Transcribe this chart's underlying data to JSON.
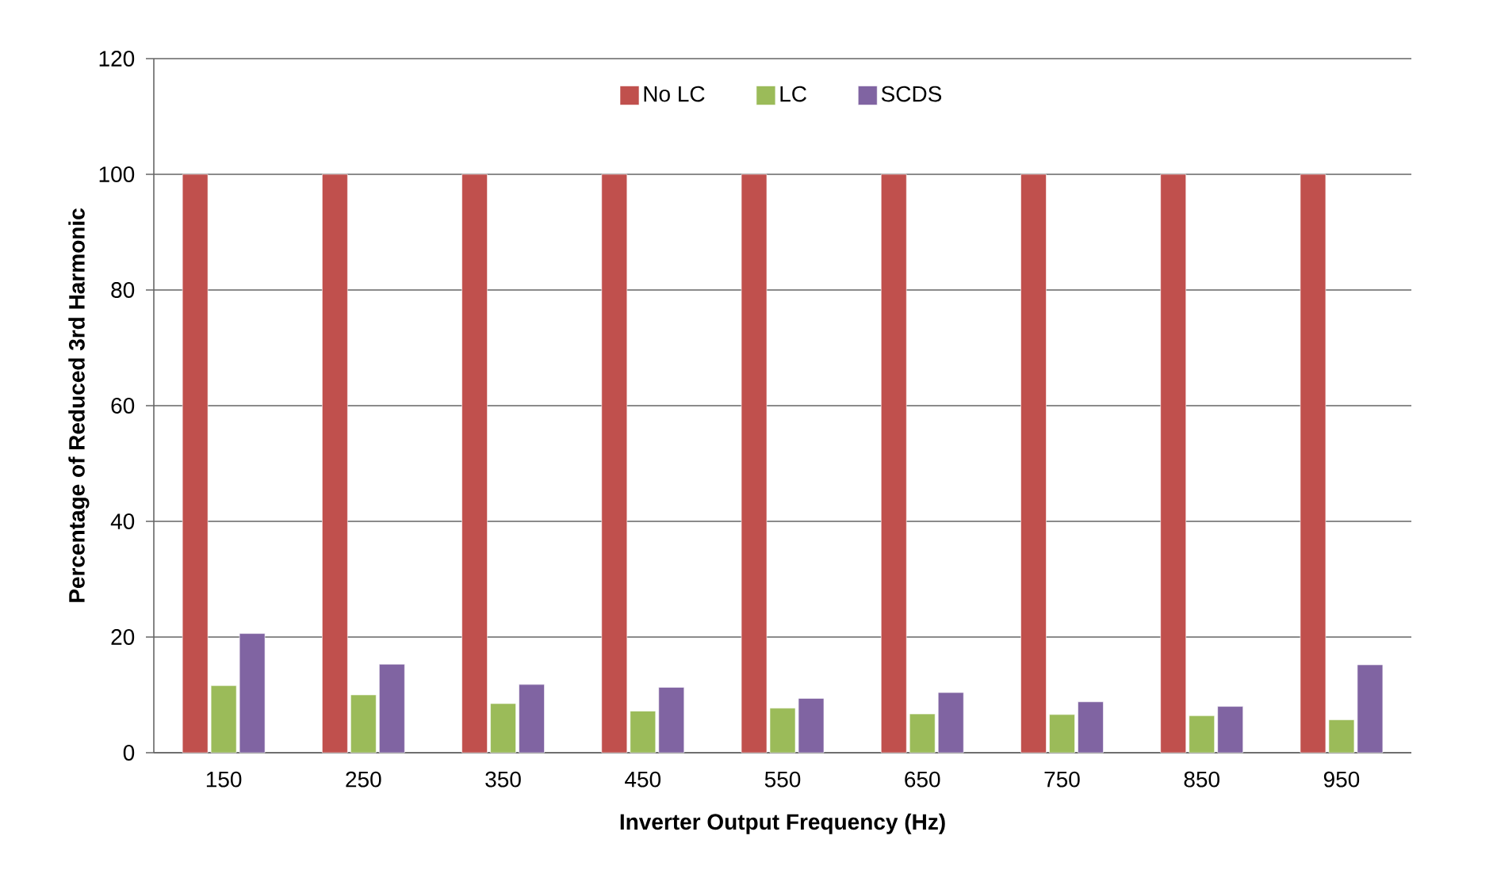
{
  "chart_data": {
    "type": "bar",
    "xlabel": "Inverter Output Frequency (Hz)",
    "ylabel": "Percentage of Reduced 3rd Harmonic",
    "categories": [
      "150",
      "250",
      "350",
      "450",
      "550",
      "650",
      "750",
      "850",
      "950"
    ],
    "series": [
      {
        "name": "No LC",
        "color": "#c0504d",
        "values": [
          100,
          100,
          100,
          100,
          100,
          100,
          100,
          100,
          100
        ]
      },
      {
        "name": "LC",
        "color": "#9bbb59",
        "values": [
          11.6,
          10.0,
          8.5,
          7.2,
          7.7,
          6.7,
          6.6,
          6.4,
          5.7
        ]
      },
      {
        "name": "SCDS",
        "color": "#8064a2",
        "values": [
          20.6,
          15.3,
          11.8,
          11.3,
          9.4,
          10.4,
          8.8,
          8.0,
          15.2
        ]
      }
    ],
    "ylim": [
      0,
      120
    ],
    "yticks": [
      0,
      20,
      40,
      60,
      80,
      100,
      120
    ],
    "grid": "y",
    "legend": "top"
  }
}
